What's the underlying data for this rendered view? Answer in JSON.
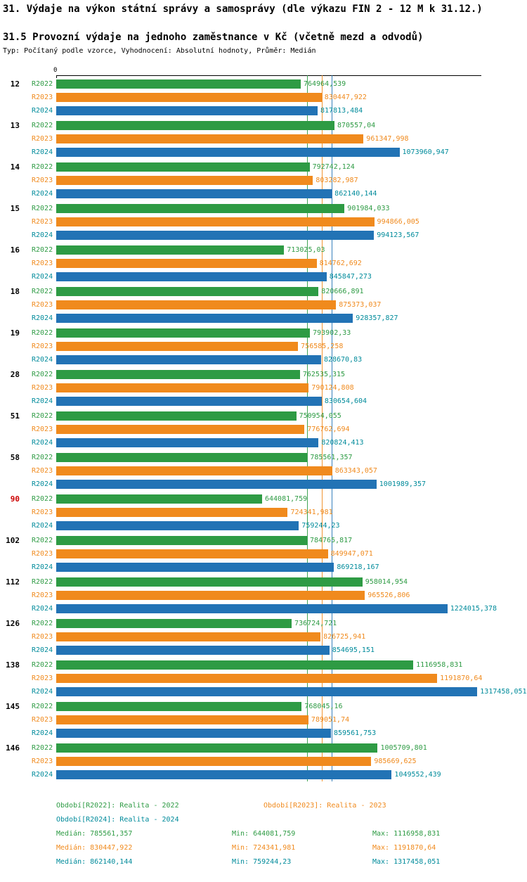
{
  "header": {
    "title1": "31. Výdaje na výkon státní správy a samosprávy (dle výkazu FIN 2 - 12 M k 31.12.)",
    "title2": "31.5 Provozní výdaje na jednoho zaměstnance v Kč (včetně mezd a odvodů)",
    "meta": "Typ: Počítaný podle vzorce, Vyhodnocení: Absolutní hodnoty, Průměr: Medián"
  },
  "chart_data": {
    "type": "bar",
    "orientation": "horizontal",
    "axis_zero_label": "0",
    "xlim": [
      0,
      1330000
    ],
    "grid": false,
    "series_names": [
      "R2022",
      "R2023",
      "R2024"
    ],
    "colors": {
      "R2022": "#2e9b44",
      "R2023": "#f08a1d",
      "R2024_bar": "#2273b5",
      "R2024_text": "#008b9b",
      "highlight": "#cc0000"
    },
    "medians": {
      "R2022": 785561.357,
      "R2023": 830447.922,
      "R2024": 862140.144
    },
    "groups": [
      {
        "id": "12",
        "highlight": false,
        "bars": [
          {
            "series": "R2022",
            "value": 764964.539,
            "label": "764964,539"
          },
          {
            "series": "R2023",
            "value": 830447.922,
            "label": "830447,922"
          },
          {
            "series": "R2024",
            "value": 817813.484,
            "label": "817813,484"
          }
        ]
      },
      {
        "id": "13",
        "highlight": false,
        "bars": [
          {
            "series": "R2022",
            "value": 870557.04,
            "label": "870557,04"
          },
          {
            "series": "R2023",
            "value": 961347.998,
            "label": "961347,998"
          },
          {
            "series": "R2024",
            "value": 1073960.947,
            "label": "1073960,947"
          }
        ]
      },
      {
        "id": "14",
        "highlight": false,
        "bars": [
          {
            "series": "R2022",
            "value": 792742.124,
            "label": "792742,124"
          },
          {
            "series": "R2023",
            "value": 803282.987,
            "label": "803282,987"
          },
          {
            "series": "R2024",
            "value": 862140.144,
            "label": "862140,144"
          }
        ]
      },
      {
        "id": "15",
        "highlight": false,
        "bars": [
          {
            "series": "R2022",
            "value": 901984.033,
            "label": "901984,033"
          },
          {
            "series": "R2023",
            "value": 994866.005,
            "label": "994866,005"
          },
          {
            "series": "R2024",
            "value": 994123.567,
            "label": "994123,567"
          }
        ]
      },
      {
        "id": "16",
        "highlight": false,
        "bars": [
          {
            "series": "R2022",
            "value": 713025.03,
            "label": "713025,03"
          },
          {
            "series": "R2023",
            "value": 814762.692,
            "label": "814762,692"
          },
          {
            "series": "R2024",
            "value": 845847.273,
            "label": "845847,273"
          }
        ]
      },
      {
        "id": "18",
        "highlight": false,
        "bars": [
          {
            "series": "R2022",
            "value": 820666.891,
            "label": "820666,891"
          },
          {
            "series": "R2023",
            "value": 875373.037,
            "label": "875373,037"
          },
          {
            "series": "R2024",
            "value": 928357.827,
            "label": "928357,827"
          }
        ]
      },
      {
        "id": "19",
        "highlight": false,
        "bars": [
          {
            "series": "R2022",
            "value": 793902.33,
            "label": "793902,33"
          },
          {
            "series": "R2023",
            "value": 756585.258,
            "label": "756585,258"
          },
          {
            "series": "R2024",
            "value": 828670.83,
            "label": "828670,83"
          }
        ]
      },
      {
        "id": "28",
        "highlight": false,
        "bars": [
          {
            "series": "R2022",
            "value": 762535.315,
            "label": "762535,315"
          },
          {
            "series": "R2023",
            "value": 790124.808,
            "label": "790124,808"
          },
          {
            "series": "R2024",
            "value": 830654.604,
            "label": "830654,604"
          }
        ]
      },
      {
        "id": "51",
        "highlight": false,
        "bars": [
          {
            "series": "R2022",
            "value": 750954.055,
            "label": "750954,055"
          },
          {
            "series": "R2023",
            "value": 776762.694,
            "label": "776762,694"
          },
          {
            "series": "R2024",
            "value": 820824.413,
            "label": "820824,413"
          }
        ]
      },
      {
        "id": "58",
        "highlight": false,
        "bars": [
          {
            "series": "R2022",
            "value": 785561.357,
            "label": "785561,357"
          },
          {
            "series": "R2023",
            "value": 863343.057,
            "label": "863343,057"
          },
          {
            "series": "R2024",
            "value": 1001989.357,
            "label": "1001989,357"
          }
        ]
      },
      {
        "id": "90",
        "highlight": true,
        "bars": [
          {
            "series": "R2022",
            "value": 644081.759,
            "label": "644081,759"
          },
          {
            "series": "R2023",
            "value": 724341.981,
            "label": "724341,981"
          },
          {
            "series": "R2024",
            "value": 759244.23,
            "label": "759244,23"
          }
        ]
      },
      {
        "id": "102",
        "highlight": false,
        "bars": [
          {
            "series": "R2022",
            "value": 784765.817,
            "label": "784765,817"
          },
          {
            "series": "R2023",
            "value": 849947.071,
            "label": "849947,071"
          },
          {
            "series": "R2024",
            "value": 869218.167,
            "label": "869218,167"
          }
        ]
      },
      {
        "id": "112",
        "highlight": false,
        "bars": [
          {
            "series": "R2022",
            "value": 958014.954,
            "label": "958014,954"
          },
          {
            "series": "R2023",
            "value": 965526.806,
            "label": "965526,806"
          },
          {
            "series": "R2024",
            "value": 1224015.378,
            "label": "1224015,378"
          }
        ]
      },
      {
        "id": "126",
        "highlight": false,
        "bars": [
          {
            "series": "R2022",
            "value": 736724.721,
            "label": "736724,721"
          },
          {
            "series": "R2023",
            "value": 826725.941,
            "label": "826725,941"
          },
          {
            "series": "R2024",
            "value": 854695.151,
            "label": "854695,151"
          }
        ]
      },
      {
        "id": "138",
        "highlight": false,
        "bars": [
          {
            "series": "R2022",
            "value": 1116958.831,
            "label": "1116958,831"
          },
          {
            "series": "R2023",
            "value": 1191870.64,
            "label": "1191870,64"
          },
          {
            "series": "R2024",
            "value": 1317458.051,
            "label": "1317458,051"
          }
        ]
      },
      {
        "id": "145",
        "highlight": false,
        "bars": [
          {
            "series": "R2022",
            "value": 768045.16,
            "label": "768045,16"
          },
          {
            "series": "R2023",
            "value": 789051.74,
            "label": "789051,74"
          },
          {
            "series": "R2024",
            "value": 859561.753,
            "label": "859561,753"
          }
        ]
      },
      {
        "id": "146",
        "highlight": false,
        "bars": [
          {
            "series": "R2022",
            "value": 1005709.801,
            "label": "1005709,801"
          },
          {
            "series": "R2023",
            "value": 985669.625,
            "label": "985669,625"
          },
          {
            "series": "R2024",
            "value": 1049552.439,
            "label": "1049552,439"
          }
        ]
      }
    ]
  },
  "footer": {
    "periods": {
      "r2022": "Období[R2022]: Realita - 2022",
      "r2023": "Období[R2023]: Realita - 2023",
      "r2024": "Období[R2024]: Realita - 2024"
    },
    "stats": {
      "r2022": {
        "median": "Medián: 785561,357",
        "min": "Min: 644081,759",
        "max": "Max: 1116958,831"
      },
      "r2023": {
        "median": "Medián: 830447,922",
        "min": "Min: 724341,981",
        "max": "Max: 1191870,64"
      },
      "r2024": {
        "median": "Medián: 862140,144",
        "min": "Min: 759244,23",
        "max": "Max: 1317458,051"
      }
    }
  }
}
